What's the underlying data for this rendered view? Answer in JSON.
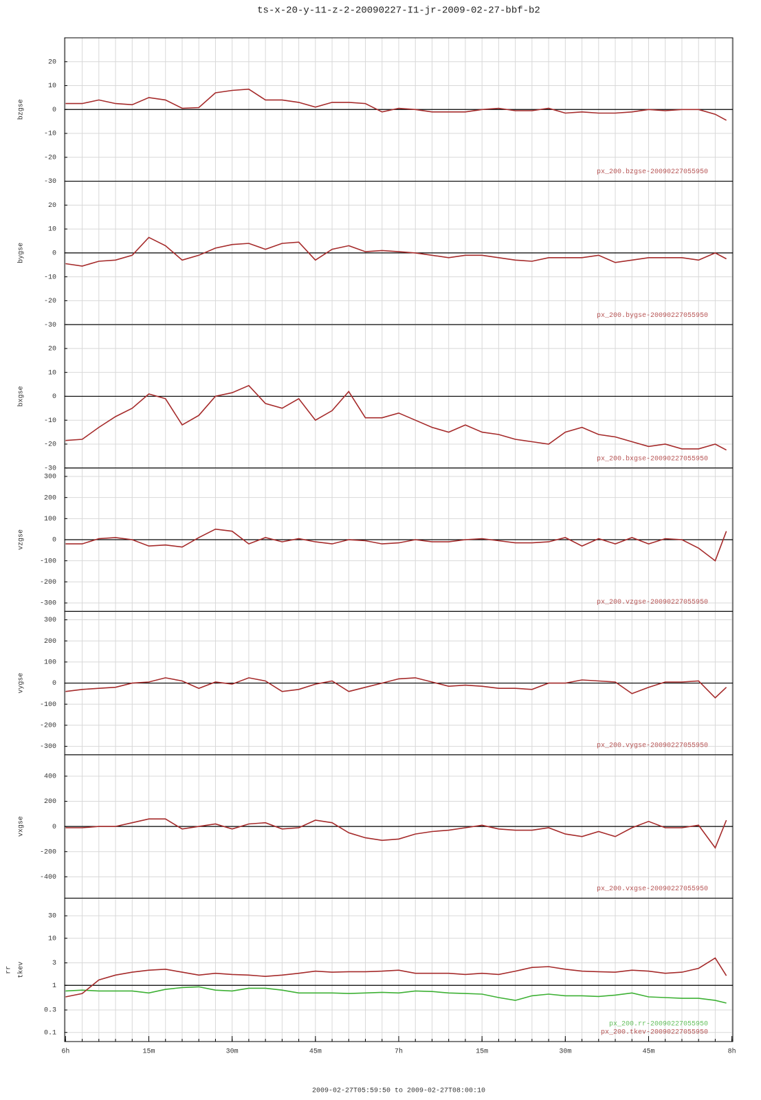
{
  "title": "ts-x-20-y-11-z-2-20090227-I1-jr-2009-02-27-bbf-b2",
  "x_label": "2009-02-27T05:59:50 to 2009-02-27T08:00:10",
  "x": [
    0,
    3,
    6,
    9,
    12,
    15,
    18,
    21,
    24,
    27,
    30,
    33,
    36,
    39,
    42,
    45,
    48,
    51,
    54,
    57,
    60,
    63,
    66,
    69,
    72,
    75,
    78,
    81,
    84,
    87,
    90,
    93,
    96,
    99,
    102,
    105,
    108,
    111,
    114,
    117,
    119
  ],
  "xlim": [
    -0.167,
    120.167
  ],
  "xticks": [
    {
      "value": 0,
      "label": "6h"
    },
    {
      "value": 15,
      "label": "15m"
    },
    {
      "value": 30,
      "label": "30m"
    },
    {
      "value": 45,
      "label": "45m"
    },
    {
      "value": 60,
      "label": "7h"
    },
    {
      "value": 75,
      "label": "15m"
    },
    {
      "value": 90,
      "label": "30m"
    },
    {
      "value": 105,
      "label": "45m"
    },
    {
      "value": 120,
      "label": "8h"
    }
  ],
  "x_minor_ticks": [
    0,
    3,
    6,
    9,
    12,
    15,
    18,
    21,
    24,
    27,
    30,
    33,
    36,
    39,
    42,
    45,
    48,
    51,
    54,
    57,
    60,
    63,
    66,
    69,
    72,
    75,
    78,
    81,
    84,
    87,
    90,
    93,
    96,
    99,
    102,
    105,
    108,
    111,
    114,
    117,
    120
  ],
  "chart_data": [
    {
      "type": "line",
      "ylabel": "bzgse",
      "ylim": [
        -30,
        30
      ],
      "yticks": [
        -30,
        -20,
        -10,
        0,
        10,
        20
      ],
      "ref_line": 0,
      "grid": true,
      "series": [
        {
          "name": "px_200.bzgse-20090227055950",
          "color": "#a52a2a",
          "values": [
            2.5,
            2.5,
            4,
            2.5,
            2,
            5,
            4,
            0.5,
            0.8,
            7,
            8,
            8.5,
            4,
            4,
            3,
            1,
            3,
            3,
            2.5,
            -1,
            0.5,
            0,
            -1,
            -1,
            -1,
            0,
            0.5,
            -0.5,
            -0.5,
            0.5,
            -1.5,
            -1,
            -1.5,
            -1.5,
            -1,
            0,
            -0.5,
            0,
            0,
            -2,
            -4.5
          ]
        }
      ]
    },
    {
      "type": "line",
      "ylabel": "bygse",
      "ylim": [
        -30,
        30
      ],
      "yticks": [
        -30,
        -20,
        -10,
        0,
        10,
        20
      ],
      "ref_line": 0,
      "grid": true,
      "series": [
        {
          "name": "px_200.bygse-20090227055950",
          "color": "#a52a2a",
          "values": [
            -4.5,
            -5.5,
            -3.5,
            -3,
            -1,
            6.5,
            3,
            -3,
            -1,
            2,
            3.5,
            4,
            1.5,
            4,
            4.5,
            -3,
            1.5,
            3,
            0.5,
            1,
            0.5,
            0,
            -1,
            -2,
            -1,
            -1,
            -2,
            -3,
            -3.5,
            -2,
            -2,
            -2,
            -1,
            -4,
            -3,
            -2,
            -2,
            -2,
            -3,
            0,
            -2.5
          ]
        }
      ]
    },
    {
      "type": "line",
      "ylabel": "bxgse",
      "ylim": [
        -30,
        30
      ],
      "yticks": [
        -30,
        -20,
        -10,
        0,
        10,
        20
      ],
      "ref_line": 0,
      "grid": true,
      "series": [
        {
          "name": "px_200.bxgse-20090227055950",
          "color": "#a52a2a",
          "values": [
            -18.5,
            -18,
            -13,
            -8.5,
            -5,
            1,
            -1,
            -12,
            -8,
            0,
            1.5,
            4.5,
            -3,
            -5,
            -1,
            -10,
            -6,
            2,
            -9,
            -9,
            -7,
            -10,
            -13,
            -15,
            -12,
            -15,
            -16,
            -18,
            -19,
            -20,
            -15,
            -13,
            -16,
            -17,
            -19,
            -21,
            -20,
            -22,
            -22,
            -20,
            -22.5
          ]
        }
      ]
    },
    {
      "type": "line",
      "ylabel": "vzgse",
      "ylim": [
        -340,
        340
      ],
      "yticks": [
        -300,
        -200,
        -100,
        0,
        100,
        200,
        300
      ],
      "ref_line": 0,
      "grid": true,
      "series": [
        {
          "name": "px_200.vzgse-20090227055950",
          "color": "#a52a2a",
          "values": [
            -20,
            -20,
            5,
            10,
            0,
            -30,
            -25,
            -35,
            10,
            50,
            40,
            -20,
            10,
            -10,
            5,
            -10,
            -20,
            0,
            -5,
            -20,
            -15,
            0,
            -10,
            -10,
            0,
            5,
            -5,
            -15,
            -15,
            -10,
            10,
            -30,
            5,
            -20,
            10,
            -20,
            5,
            0,
            -40,
            -100,
            40
          ]
        }
      ]
    },
    {
      "type": "line",
      "ylabel": "vygse",
      "ylim": [
        -340,
        340
      ],
      "yticks": [
        -300,
        -200,
        -100,
        0,
        100,
        200,
        300
      ],
      "ref_line": 0,
      "grid": true,
      "series": [
        {
          "name": "px_200.vygse-20090227055950",
          "color": "#a52a2a",
          "values": [
            -40,
            -30,
            -25,
            -20,
            0,
            5,
            25,
            10,
            -25,
            5,
            -5,
            25,
            10,
            -40,
            -30,
            -5,
            10,
            -40,
            -20,
            0,
            20,
            25,
            5,
            -15,
            -10,
            -15,
            -25,
            -25,
            -30,
            0,
            0,
            15,
            10,
            5,
            -50,
            -20,
            5,
            5,
            10,
            -70,
            -20
          ]
        }
      ]
    },
    {
      "type": "line",
      "ylabel": "vxgse",
      "ylim": [
        -570,
        570
      ],
      "yticks": [
        -400,
        -200,
        0,
        200,
        400
      ],
      "ref_line": 0,
      "grid": true,
      "series": [
        {
          "name": "px_200.vxgse-20090227055950",
          "color": "#a52a2a",
          "values": [
            -10,
            -10,
            0,
            0,
            30,
            60,
            60,
            -20,
            0,
            20,
            -20,
            20,
            30,
            -20,
            -10,
            50,
            30,
            -50,
            -90,
            -110,
            -100,
            -60,
            -40,
            -30,
            -10,
            10,
            -20,
            -30,
            -30,
            -10,
            -60,
            -80,
            -40,
            -80,
            -10,
            40,
            -10,
            -10,
            10,
            -170,
            50
          ]
        }
      ]
    },
    {
      "type": "line",
      "ylabel": [
        "rr",
        "tkev"
      ],
      "log_y": true,
      "ylim": [
        0.064,
        71
      ],
      "yticks": [
        0.1,
        0.3,
        1,
        3,
        10,
        30
      ],
      "ref_line": 1,
      "grid": true,
      "series": [
        {
          "name": "px_200.rr-20090227055950",
          "color": "#3cb033",
          "values": [
            0.76,
            0.79,
            0.76,
            0.76,
            0.76,
            0.69,
            0.82,
            0.9,
            0.93,
            0.79,
            0.76,
            0.87,
            0.87,
            0.79,
            0.69,
            0.69,
            0.69,
            0.67,
            0.69,
            0.71,
            0.69,
            0.76,
            0.74,
            0.69,
            0.67,
            0.65,
            0.55,
            0.48,
            0.6,
            0.65,
            0.6,
            0.6,
            0.58,
            0.62,
            0.69,
            0.57,
            0.55,
            0.53,
            0.53,
            0.48,
            0.42
          ]
        },
        {
          "name": "px_200.tkev-20090227055950",
          "color": "#a52a2a",
          "values": [
            0.57,
            0.67,
            1.3,
            1.65,
            1.9,
            2.1,
            2.2,
            1.9,
            1.65,
            1.8,
            1.7,
            1.65,
            1.55,
            1.65,
            1.8,
            2,
            1.9,
            1.95,
            1.95,
            2,
            2.1,
            1.8,
            1.8,
            1.8,
            1.7,
            1.8,
            1.7,
            2,
            2.4,
            2.5,
            2.2,
            2,
            1.95,
            1.9,
            2.1,
            2,
            1.8,
            1.9,
            2.3,
            3.8,
            1.6
          ]
        }
      ]
    }
  ]
}
